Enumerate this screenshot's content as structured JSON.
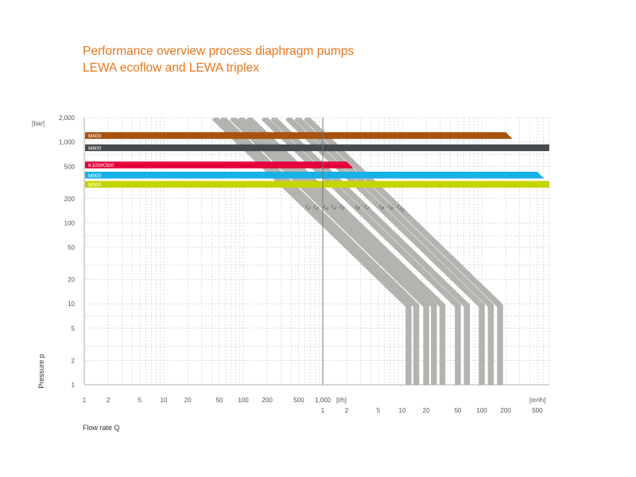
{
  "title": {
    "line1": "Performance overview process diaphragm pumps",
    "line2": "LEWA ecoflow and LEWA triplex"
  },
  "chart_data": {
    "type": "area",
    "ylabel": "Pressure p",
    "xlabel": "Flow rate Q",
    "y_unit": "[bar]",
    "x_unit_lh": "[l/h]",
    "x_unit_m3h": "[m³/h]",
    "y_scale": "log",
    "x_scale": "log",
    "ylim": [
      1,
      2000
    ],
    "xlim_lh": [
      1,
      500000
    ],
    "y_ticks": [
      "1",
      "2",
      "5",
      "10",
      "20",
      "50",
      "100",
      "200",
      "500",
      "1,000",
      "2,000"
    ],
    "x_ticks_lh": [
      "1",
      "2",
      "5",
      "10",
      "20",
      "50",
      "100",
      "200",
      "500",
      "1,000"
    ],
    "x_ticks_m3h": [
      "1",
      "2",
      "5",
      "10",
      "20",
      "50",
      "100",
      "200",
      "500"
    ],
    "grid": true,
    "colors": {
      "M400": "#a8520f",
      "M800": "#464a4c",
      "K100/K500": "#e4003a",
      "M900": "#16b1e6",
      "M500": "#c4d600",
      "lanes": "#b3b4b0"
    },
    "bands": [
      {
        "name": "M400",
        "pressure_bar": 1200,
        "q_max_lh": 200000
      },
      {
        "name": "M800",
        "pressure_bar": 850,
        "q_max_lh": 800000
      },
      {
        "name": "K100/K500",
        "pressure_bar": 520,
        "q_max_lh": 2000
      },
      {
        "name": "M900",
        "pressure_bar": 390,
        "q_max_lh": 500000
      },
      {
        "name": "M500",
        "pressure_bar": 300,
        "q_max_lh": 40000000
      }
    ],
    "lanes": [
      {
        "name": "L1",
        "q_low_pressure_m3h": 12
      },
      {
        "name": "L2",
        "q_low_pressure_m3h": 15
      },
      {
        "name": "L3",
        "q_low_pressure_m3h": 20
      },
      {
        "name": "L4",
        "q_low_pressure_m3h": 25
      },
      {
        "name": "L5",
        "q_low_pressure_m3h": 32
      },
      {
        "name": "L6",
        "q_low_pressure_m3h": 50
      },
      {
        "name": "L7",
        "q_low_pressure_m3h": 65
      },
      {
        "name": "L8",
        "q_low_pressure_m3h": 100
      },
      {
        "name": "L9",
        "q_low_pressure_m3h": 130
      },
      {
        "name": "L10",
        "q_low_pressure_m3h": 170
      }
    ]
  }
}
